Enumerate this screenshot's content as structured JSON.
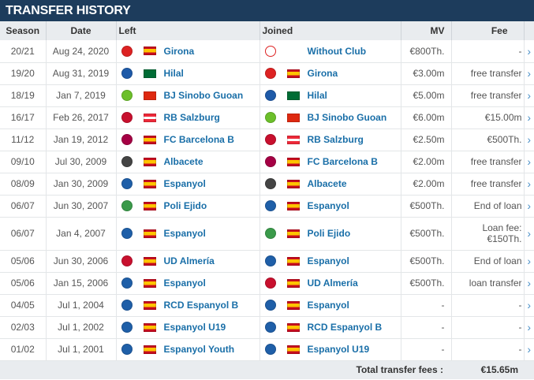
{
  "title": "TRANSFER HISTORY",
  "columns": {
    "season": "Season",
    "date": "Date",
    "left": "Left",
    "joined": "Joined",
    "mv": "MV",
    "fee": "Fee"
  },
  "rows": [
    {
      "season": "20/21",
      "date": "Aug 24, 2020",
      "left": "Girona",
      "left_flag": "spain-flag",
      "left_crest": "#d22",
      "joined": "Without Club",
      "joined_flag": "",
      "joined_crest": "#fff",
      "mv": "€800Th.",
      "fee": "-"
    },
    {
      "season": "19/20",
      "date": "Aug 31, 2019",
      "left": "Hilal",
      "left_flag": "saudi-flag",
      "left_crest": "#1e5aa8",
      "joined": "Girona",
      "joined_flag": "spain-flag",
      "joined_crest": "#d22",
      "mv": "€3.00m",
      "fee": "free transfer"
    },
    {
      "season": "18/19",
      "date": "Jan 7, 2019",
      "left": "BJ Sinobo Guoan",
      "left_flag": "china-flag",
      "left_crest": "#6cbf2a",
      "joined": "Hilal",
      "joined_flag": "saudi-flag",
      "joined_crest": "#1e5aa8",
      "mv": "€5.00m",
      "fee": "free transfer"
    },
    {
      "season": "16/17",
      "date": "Feb 26, 2017",
      "left": "RB Salzburg",
      "left_flag": "austria-flag",
      "left_crest": "#c8102e",
      "joined": "BJ Sinobo Guoan",
      "joined_flag": "china-flag",
      "joined_crest": "#6cbf2a",
      "mv": "€6.00m",
      "fee": "€15.00m"
    },
    {
      "season": "11/12",
      "date": "Jan 19, 2012",
      "left": "FC Barcelona B",
      "left_flag": "spain-flag",
      "left_crest": "#a50044",
      "joined": "RB Salzburg",
      "joined_flag": "austria-flag",
      "joined_crest": "#c8102e",
      "mv": "€2.50m",
      "fee": "€500Th."
    },
    {
      "season": "09/10",
      "date": "Jul 30, 2009",
      "left": "Albacete",
      "left_flag": "spain-flag",
      "left_crest": "#444",
      "joined": "FC Barcelona B",
      "joined_flag": "spain-flag",
      "joined_crest": "#a50044",
      "mv": "€2.00m",
      "fee": "free transfer"
    },
    {
      "season": "08/09",
      "date": "Jan 30, 2009",
      "left": "Espanyol",
      "left_flag": "spain-flag",
      "left_crest": "#1f5fa8",
      "joined": "Albacete",
      "joined_flag": "spain-flag",
      "joined_crest": "#444",
      "mv": "€2.00m",
      "fee": "free transfer"
    },
    {
      "season": "06/07",
      "date": "Jun 30, 2007",
      "left": "Poli Ejido",
      "left_flag": "spain-flag",
      "left_crest": "#3a9a4a",
      "joined": "Espanyol",
      "joined_flag": "spain-flag",
      "joined_crest": "#1f5fa8",
      "mv": "€500Th.",
      "fee": "End of loan"
    },
    {
      "season": "06/07",
      "date": "Jan 4, 2007",
      "left": "Espanyol",
      "left_flag": "spain-flag",
      "left_crest": "#1f5fa8",
      "joined": "Poli Ejido",
      "joined_flag": "spain-flag",
      "joined_crest": "#3a9a4a",
      "mv": "€500Th.",
      "fee": "Loan fee: €150Th.",
      "tall": true
    },
    {
      "season": "05/06",
      "date": "Jun 30, 2006",
      "left": "UD Almería",
      "left_flag": "spain-flag",
      "left_crest": "#c8102e",
      "joined": "Espanyol",
      "joined_flag": "spain-flag",
      "joined_crest": "#1f5fa8",
      "mv": "€500Th.",
      "fee": "End of loan"
    },
    {
      "season": "05/06",
      "date": "Jan 15, 2006",
      "left": "Espanyol",
      "left_flag": "spain-flag",
      "left_crest": "#1f5fa8",
      "joined": "UD Almería",
      "joined_flag": "spain-flag",
      "joined_crest": "#c8102e",
      "mv": "€500Th.",
      "fee": "loan transfer"
    },
    {
      "season": "04/05",
      "date": "Jul 1, 2004",
      "left": "RCD Espanyol B",
      "left_flag": "spain-flag",
      "left_crest": "#1f5fa8",
      "joined": "Espanyol",
      "joined_flag": "spain-flag",
      "joined_crest": "#1f5fa8",
      "mv": "-",
      "fee": "-"
    },
    {
      "season": "02/03",
      "date": "Jul 1, 2002",
      "left": "Espanyol U19",
      "left_flag": "spain-flag",
      "left_crest": "#1f5fa8",
      "joined": "RCD Espanyol B",
      "joined_flag": "spain-flag",
      "joined_crest": "#1f5fa8",
      "mv": "-",
      "fee": "-"
    },
    {
      "season": "01/02",
      "date": "Jul 1, 2001",
      "left": "Espanyol Youth",
      "left_flag": "spain-flag",
      "left_crest": "#1f5fa8",
      "joined": "Espanyol U19",
      "joined_flag": "spain-flag",
      "joined_crest": "#1f5fa8",
      "mv": "-",
      "fee": "-"
    }
  ],
  "footer": {
    "label": "Total transfer fees :",
    "total": "€15.65m"
  },
  "colors": {
    "header_bg": "#1d3c5c",
    "link": "#1a6fa8",
    "row_border": "#e3e6e8",
    "arrow": "#4a90c8"
  },
  "icons": {
    "row_arrow": "chevron-right-icon"
  }
}
